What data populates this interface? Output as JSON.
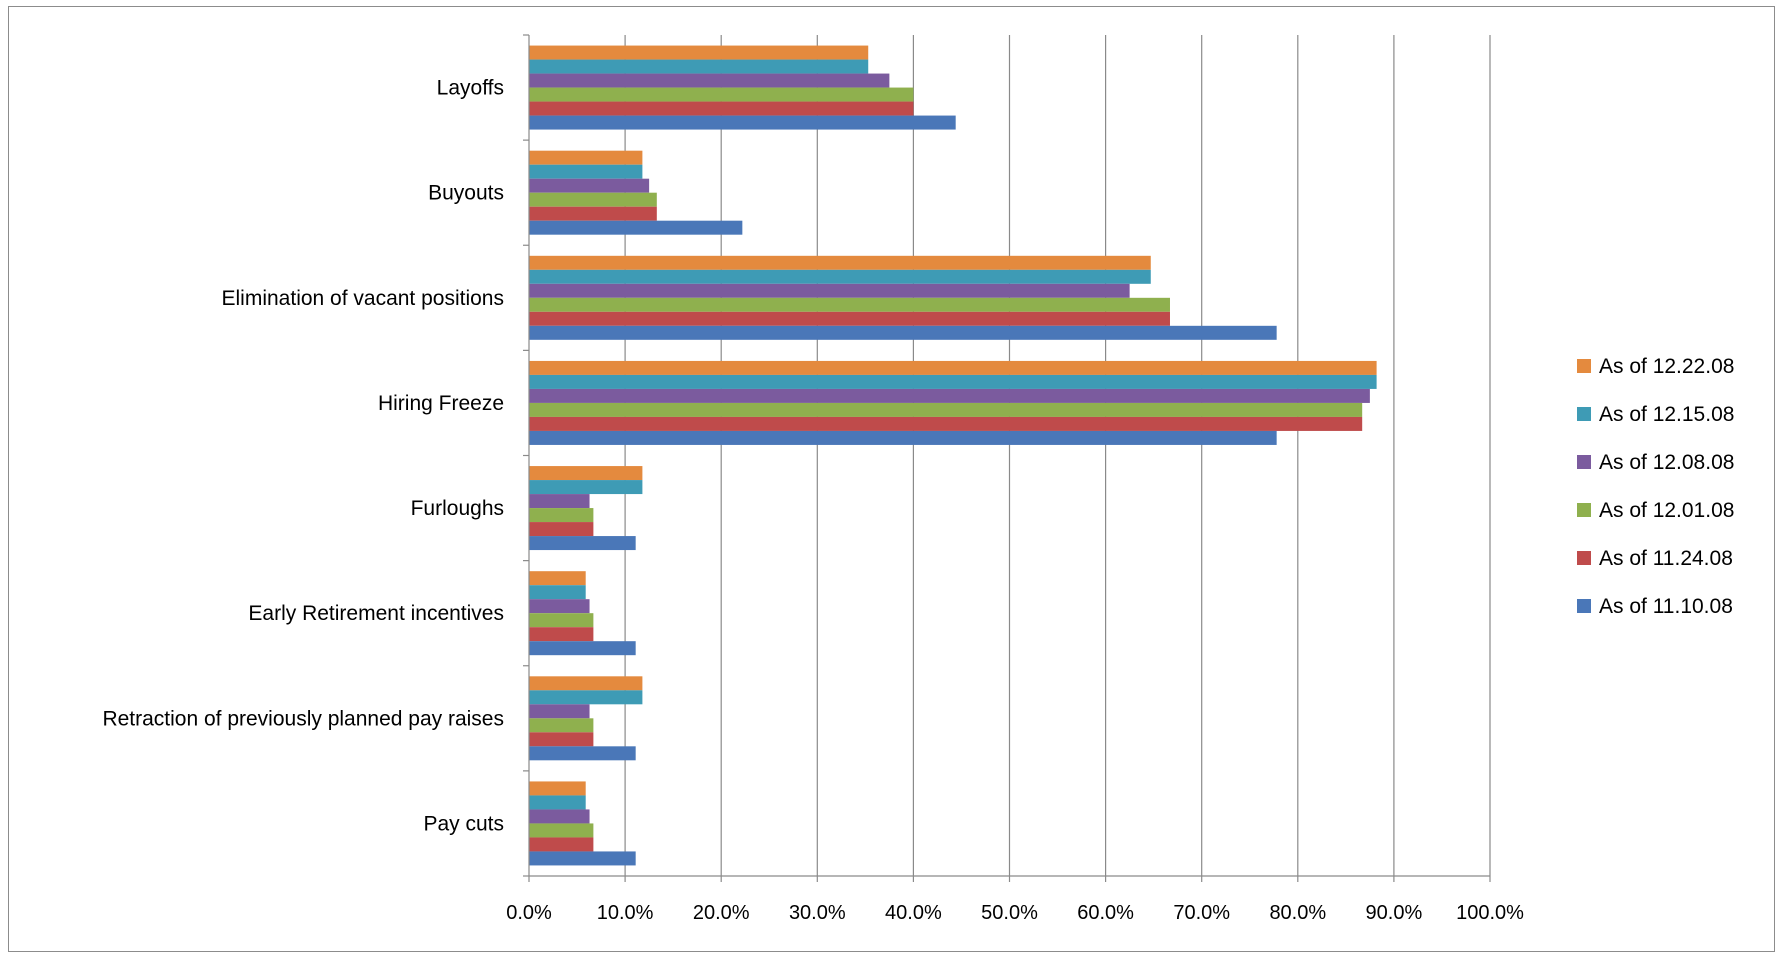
{
  "chart_data": {
    "type": "bar",
    "orientation": "horizontal",
    "title": "",
    "xlabel": "",
    "ylabel": "",
    "xlim": [
      0,
      100
    ],
    "x_ticks": [
      "0.0%",
      "10.0%",
      "20.0%",
      "30.0%",
      "40.0%",
      "50.0%",
      "60.0%",
      "70.0%",
      "80.0%",
      "90.0%",
      "100.0%"
    ],
    "grid": "vertical major gridlines",
    "legend_position": "right",
    "categories": [
      "Layoffs",
      "Buyouts",
      "Elimination of vacant positions",
      "Hiring Freeze",
      "Furloughs",
      "Early Retirement incentives",
      "Retraction of previously planned pay raises",
      "Pay cuts"
    ],
    "series": [
      {
        "name": "As of 12.22.08",
        "color": "#E48A3E",
        "values": [
          35.3,
          11.8,
          64.7,
          88.2,
          11.8,
          5.9,
          11.8,
          5.9
        ]
      },
      {
        "name": "As of 12.15.08",
        "color": "#3E9BB5",
        "values": [
          35.3,
          11.8,
          64.7,
          88.2,
          11.8,
          5.9,
          11.8,
          5.9
        ]
      },
      {
        "name": "As of 12.08.08",
        "color": "#7B5B9E",
        "values": [
          37.5,
          12.5,
          62.5,
          87.5,
          6.3,
          6.3,
          6.3,
          6.3
        ]
      },
      {
        "name": "As of 12.01.08",
        "color": "#8FB04E",
        "values": [
          40.0,
          13.3,
          66.7,
          86.7,
          6.7,
          6.7,
          6.7,
          6.7
        ]
      },
      {
        "name": "As of 11.24.08",
        "color": "#BF4B4B",
        "values": [
          40.0,
          13.3,
          66.7,
          86.7,
          6.7,
          6.7,
          6.7,
          6.7
        ]
      },
      {
        "name": "As of 11.10.08",
        "color": "#4A77B8",
        "values": [
          44.4,
          22.2,
          77.8,
          77.8,
          11.1,
          11.1,
          11.1,
          11.1
        ]
      }
    ]
  }
}
